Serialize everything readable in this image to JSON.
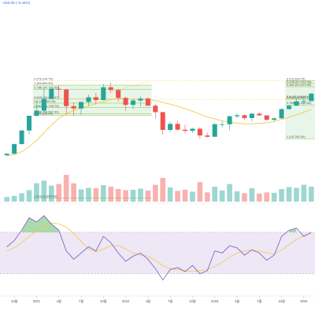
{
  "header": {
    "change_text": "−432.00 (−0.44%)"
  },
  "colors": {
    "up": "#26a69a",
    "down": "#ef5350",
    "ma": "#f2c94c",
    "ma_dashed": "#e8d24a",
    "fib_line": "#8bc34a",
    "fib_zone": "#e8f5e9",
    "rsi": "#7e57c2",
    "rsi_ma": "#f2c94c",
    "rsi_band": "#ede7f6",
    "rsi_peak": "#66bb6a"
  },
  "chart_data": {
    "type": "candlestick",
    "x": [
      "2020-09",
      "2020-10",
      "2020-11",
      "2020-12",
      "2021-01",
      "2021-02",
      "2021-03",
      "2021-04",
      "2021-05",
      "2021-06",
      "2021-07",
      "2021-08",
      "2021-09",
      "2021-10",
      "2021-11",
      "2021-12",
      "2022-01",
      "2022-02",
      "2022-03",
      "2022-04",
      "2022-05",
      "2022-06",
      "2022-07",
      "2022-08",
      "2022-09",
      "2022-10",
      "2022-11",
      "2022-12",
      "2023-01",
      "2023-02",
      "2023-03",
      "2023-04",
      "2023-05",
      "2023-06",
      "2023-07",
      "2023-08",
      "2023-09",
      "2023-10",
      "2023-11",
      "2023-12",
      "2024-01",
      "2024-02"
    ],
    "x_ticks": [
      "10월",
      "2021",
      "4월",
      "7월",
      "10월",
      "2022",
      "4월",
      "7월",
      "10월",
      "2023",
      "4월",
      "7월",
      "10월",
      "2024"
    ],
    "fib_left": {
      "levels": [
        {
          "label": "1 (64,854.00)",
          "v": 64854
        },
        {
          "label": "0.786 (57,723.00)",
          "v": 57723
        },
        {
          "label": "0.618 (44,845.67)",
          "v": 44845
        },
        {
          "label": "0.5 (40,295.25)",
          "v": 40295
        },
        {
          "label": "0.382 (35,745.75)",
          "v": 35745
        },
        {
          "label": "0.236 (30,507.00)",
          "v": 30507
        },
        {
          "label": "0 (29,325.00)",
          "v": 29325
        },
        {
          "label": "1.618 (3,305.00)",
          "v": 3305
        }
      ],
      "top_label": "0 (73,104.75)"
    },
    "fib_right": {
      "levels": [
        {
          "label": "0 (73,104.75)",
          "v": 73104
        },
        {
          "label": "0.236 (67,913.34)",
          "v": 67913
        },
        {
          "label": "0.382 (62,223.50)",
          "v": 62223
        },
        {
          "label": "0.5 (45,645.54)",
          "v": 45645
        },
        {
          "label": "0.618 (44,587.76)",
          "v": 44587
        },
        {
          "label": "0.786 (38,499.50)",
          "v": 38499
        },
        {
          "label": "1 (15,750.00)",
          "v": 15750
        }
      ]
    },
    "ohlc": [
      [
        10200,
        10800,
        10000,
        10600
      ],
      [
        10600,
        13800,
        10500,
        13700
      ],
      [
        13700,
        19800,
        13500,
        19600
      ],
      [
        19600,
        29000,
        17600,
        28900
      ],
      [
        28900,
        41900,
        28000,
        33100
      ],
      [
        33100,
        58300,
        32000,
        45200
      ],
      [
        45200,
        61700,
        44800,
        58800
      ],
      [
        58800,
        64854,
        47000,
        57700
      ],
      [
        57700,
        59500,
        30000,
        37300
      ],
      [
        37300,
        41300,
        28800,
        35000
      ],
      [
        35000,
        42400,
        29300,
        41500
      ],
      [
        41500,
        50500,
        37300,
        47100
      ],
      [
        47100,
        52900,
        39600,
        43800
      ],
      [
        43800,
        67000,
        43300,
        61300
      ],
      [
        61300,
        69000,
        53300,
        57000
      ],
      [
        57000,
        59000,
        42000,
        46300
      ],
      [
        46300,
        47900,
        33000,
        38500
      ],
      [
        38500,
        45800,
        34300,
        43200
      ],
      [
        43200,
        48200,
        37200,
        45500
      ],
      [
        45500,
        47400,
        37800,
        37700
      ],
      [
        37700,
        40000,
        26700,
        31800
      ],
      [
        31800,
        31900,
        17600,
        19900
      ],
      [
        19900,
        24600,
        18800,
        23300
      ],
      [
        23300,
        25200,
        19600,
        20000
      ],
      [
        20000,
        22800,
        18200,
        19400
      ],
      [
        19400,
        21000,
        18300,
        20500
      ],
      [
        20500,
        21400,
        15750,
        17200
      ],
      [
        17200,
        18400,
        16300,
        16600
      ],
      [
        16600,
        23900,
        16500,
        23100
      ],
      [
        23100,
        25200,
        21400,
        23100
      ],
      [
        23100,
        29200,
        19600,
        28500
      ],
      [
        28500,
        31000,
        26900,
        29300
      ],
      [
        29300,
        29800,
        25800,
        27200
      ],
      [
        27200,
        31400,
        24800,
        30500
      ],
      [
        30500,
        31800,
        28900,
        29200
      ],
      [
        29200,
        29300,
        25400,
        26000
      ],
      [
        26000,
        27500,
        24900,
        27000
      ],
      [
        27000,
        35000,
        26600,
        34500
      ],
      [
        34500,
        38400,
        34100,
        37700
      ],
      [
        37700,
        44700,
        37600,
        42300
      ],
      [
        42300,
        48900,
        38500,
        42600
      ],
      [
        42600,
        52000,
        42300,
        51900
      ]
    ],
    "ma": [
      10000,
      10400,
      11200,
      12800,
      15000,
      18500,
      22600,
      27000,
      30500,
      33200,
      35400,
      37600,
      39600,
      42000,
      44300,
      45400,
      45300,
      44600,
      44600,
      44100,
      43100,
      41200,
      39200,
      37100,
      34800,
      32600,
      30200,
      28000,
      26600,
      25200,
      24400,
      23800,
      23300,
      23400,
      23700,
      24000,
      24900,
      26200,
      27800,
      29700,
      31800,
      34000
    ],
    "volume": [
      1.2,
      1.5,
      2.2,
      3.0,
      4.8,
      5.5,
      4.2,
      4.6,
      7.0,
      4.8,
      3.2,
      3.6,
      3.5,
      4.3,
      3.9,
      3.3,
      3.0,
      3.1,
      3.4,
      2.9,
      4.4,
      6.2,
      3.7,
      2.8,
      3.1,
      2.6,
      5.1,
      2.4,
      3.9,
      2.9,
      4.6,
      2.7,
      2.2,
      3.5,
      2.1,
      2.4,
      2.3,
      3.3,
      3.8,
      3.6,
      4.4,
      3.9
    ],
    "rsi": [
      56,
      62,
      72,
      84,
      80,
      86,
      78,
      72,
      52,
      44,
      50,
      56,
      52,
      66,
      60,
      50,
      42,
      47,
      50,
      44,
      35,
      24,
      34,
      36,
      32,
      38,
      30,
      33,
      52,
      50,
      57,
      55,
      48,
      53,
      50,
      43,
      48,
      66,
      72,
      74,
      66,
      70
    ],
    "rsi_ma": [
      52,
      55,
      60,
      66,
      71,
      76,
      79,
      78,
      75,
      69,
      61,
      54,
      51,
      54,
      57,
      57,
      54,
      50,
      48,
      47,
      43,
      38,
      35,
      34,
      33,
      32,
      33,
      34,
      37,
      41,
      46,
      50,
      52,
      53,
      52,
      50,
      49,
      53,
      58,
      63,
      67,
      69
    ],
    "ylim": [
      3000,
      80000
    ],
    "rsi_lim": [
      10,
      95
    ],
    "rsi_bands": [
      30,
      70
    ]
  }
}
